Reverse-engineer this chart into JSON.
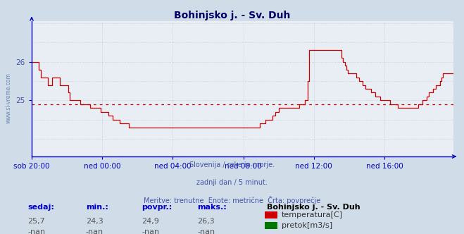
{
  "title": "Bohinjsko j. - Sv. Duh",
  "bg_color": "#d0dce8",
  "plot_bg_color": "#e8eef4",
  "grid_color": "#c8c8d8",
  "line_color": "#cc0000",
  "avg_line_color": "#cc0000",
  "avg_value": 24.9,
  "ylim_low": 23.55,
  "ylim_high": 27.05,
  "yticks": [
    25,
    26
  ],
  "axis_color": "#0000bb",
  "xlabel_color": "#4455aa",
  "ylabel_color": "#4455aa",
  "title_color": "#000066",
  "footer_lines": [
    "Slovenija / reke in morje.",
    "zadnji dan / 5 minut.",
    "Meritve: trenutne  Enote: metrične  Črta: povprečje"
  ],
  "legend_title": "Bohinjsko j. - Sv. Duh",
  "legend_items": [
    {
      "label": "temperatura[C]",
      "color": "#cc0000"
    },
    {
      "label": "pretok[m3/s]",
      "color": "#007700"
    }
  ],
  "stats_headers": [
    "sedaj:",
    "min.:",
    "povpr.:",
    "maks.:"
  ],
  "stats_temp": [
    "25,7",
    "24,3",
    "24,9",
    "26,3"
  ],
  "stats_flow": [
    "-nan",
    "-nan",
    "-nan",
    "-nan"
  ],
  "xtick_labels": [
    "sob 20:00",
    "ned 00:00",
    "ned 04:00",
    "ned 08:00",
    "ned 12:00",
    "ned 16:00"
  ],
  "xtick_pos": [
    0,
    48,
    96,
    144,
    192,
    240
  ],
  "xlim": [
    0,
    287
  ],
  "temp_data": [
    26.0,
    26.0,
    26.0,
    26.0,
    26.0,
    25.8,
    25.6,
    25.6,
    25.6,
    25.6,
    25.6,
    25.4,
    25.4,
    25.4,
    25.6,
    25.6,
    25.6,
    25.6,
    25.6,
    25.4,
    25.4,
    25.4,
    25.4,
    25.4,
    25.4,
    25.2,
    25.0,
    25.0,
    25.0,
    25.0,
    25.0,
    25.0,
    25.0,
    24.9,
    24.9,
    24.9,
    24.9,
    24.9,
    24.9,
    24.9,
    24.8,
    24.8,
    24.8,
    24.8,
    24.8,
    24.8,
    24.8,
    24.7,
    24.7,
    24.7,
    24.7,
    24.7,
    24.6,
    24.6,
    24.6,
    24.5,
    24.5,
    24.5,
    24.5,
    24.5,
    24.4,
    24.4,
    24.4,
    24.4,
    24.4,
    24.4,
    24.3,
    24.3,
    24.3,
    24.3,
    24.3,
    24.3,
    24.3,
    24.3,
    24.3,
    24.3,
    24.3,
    24.3,
    24.3,
    24.3,
    24.3,
    24.3,
    24.3,
    24.3,
    24.3,
    24.3,
    24.3,
    24.3,
    24.3,
    24.3,
    24.3,
    24.3,
    24.3,
    24.3,
    24.3,
    24.3,
    24.3,
    24.3,
    24.3,
    24.3,
    24.3,
    24.3,
    24.3,
    24.3,
    24.3,
    24.3,
    24.3,
    24.3,
    24.3,
    24.3,
    24.3,
    24.3,
    24.3,
    24.3,
    24.3,
    24.3,
    24.3,
    24.3,
    24.3,
    24.3,
    24.3,
    24.3,
    24.3,
    24.3,
    24.3,
    24.3,
    24.3,
    24.3,
    24.3,
    24.3,
    24.3,
    24.3,
    24.3,
    24.3,
    24.3,
    24.3,
    24.3,
    24.3,
    24.3,
    24.3,
    24.3,
    24.3,
    24.3,
    24.3,
    24.3,
    24.3,
    24.3,
    24.3,
    24.3,
    24.3,
    24.3,
    24.3,
    24.3,
    24.3,
    24.3,
    24.4,
    24.4,
    24.4,
    24.4,
    24.5,
    24.5,
    24.5,
    24.5,
    24.5,
    24.6,
    24.6,
    24.7,
    24.7,
    24.8,
    24.8,
    24.8,
    24.8,
    24.8,
    24.8,
    24.8,
    24.8,
    24.8,
    24.8,
    24.8,
    24.8,
    24.8,
    24.8,
    24.9,
    24.9,
    24.9,
    24.9,
    25.0,
    25.0,
    25.5,
    26.3,
    26.3,
    26.3,
    26.3,
    26.3,
    26.3,
    26.3,
    26.3,
    26.3,
    26.3,
    26.3,
    26.3,
    26.3,
    26.3,
    26.3,
    26.3,
    26.3,
    26.3,
    26.3,
    26.3,
    26.3,
    26.3,
    26.1,
    26.0,
    25.9,
    25.8,
    25.7,
    25.7,
    25.7,
    25.7,
    25.7,
    25.7,
    25.6,
    25.6,
    25.5,
    25.5,
    25.4,
    25.4,
    25.3,
    25.3,
    25.3,
    25.3,
    25.2,
    25.2,
    25.2,
    25.1,
    25.1,
    25.1,
    25.0,
    25.0,
    25.0,
    25.0,
    25.0,
    25.0,
    25.0,
    24.9,
    24.9,
    24.9,
    24.9,
    24.9,
    24.8,
    24.8,
    24.8,
    24.8,
    24.8,
    24.8,
    24.8,
    24.8,
    24.8,
    24.8,
    24.8,
    24.8,
    24.8,
    24.8,
    24.9,
    24.9,
    24.9,
    25.0,
    25.0,
    25.0,
    25.1,
    25.2,
    25.2,
    25.2,
    25.3,
    25.3,
    25.4,
    25.4,
    25.4,
    25.5,
    25.6,
    25.7,
    25.7,
    25.7,
    25.7,
    25.7,
    25.7,
    25.7,
    25.7,
    25.7,
    25.7
  ]
}
